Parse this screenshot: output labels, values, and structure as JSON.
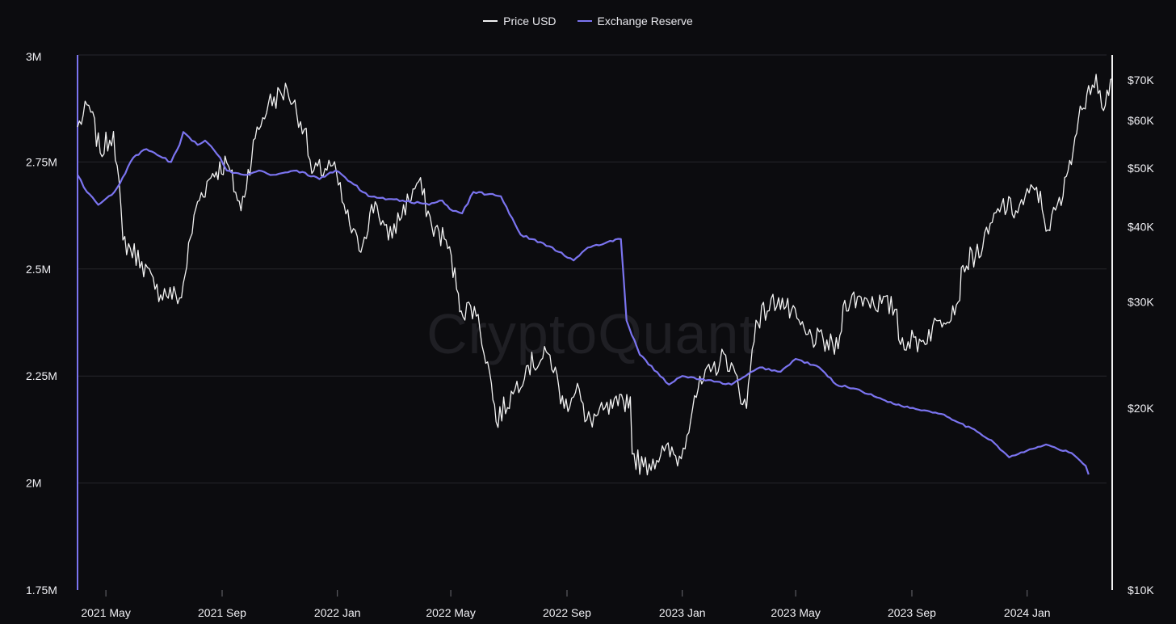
{
  "chart_data": {
    "type": "line",
    "title": "",
    "watermark": "CryptoQuant",
    "legend_position": "top-center",
    "grid": true,
    "x_axis": {
      "type": "date",
      "tick_labels": [
        "2021 May",
        "2021 Sep",
        "2022 Jan",
        "2022 May",
        "2022 Sep",
        "2023 Jan",
        "2023 May",
        "2023 Sep",
        "2024 Jan"
      ],
      "tick_dates": [
        "2021-05-01",
        "2021-09-01",
        "2022-01-01",
        "2022-05-01",
        "2022-09-01",
        "2023-01-01",
        "2023-05-01",
        "2023-09-01",
        "2024-01-01"
      ],
      "range": [
        "2021-04-01",
        "2024-03-31"
      ]
    },
    "y_left": {
      "label": "",
      "scale": "linear",
      "range": [
        1750000,
        3000000
      ],
      "ticks": [
        1750000,
        2000000,
        2250000,
        2500000,
        2750000,
        3000000
      ],
      "tick_labels": [
        "1.75M",
        "2M",
        "2.25M",
        "2.5M",
        "2.75M",
        "3M"
      ],
      "series": "Exchange Reserve"
    },
    "y_right": {
      "label": "",
      "scale": "log",
      "range": [
        10000,
        77000
      ],
      "ticks": [
        10000,
        20000,
        30000,
        40000,
        50000,
        60000,
        70000
      ],
      "tick_labels": [
        "$10K",
        "$20K",
        "$30K",
        "$40K",
        "$50K",
        "$60K",
        "$70K"
      ],
      "series": "Price USD"
    },
    "series": [
      {
        "name": "Price USD",
        "axis": "right",
        "color": "#f2f2f2",
        "x": [
          "2021-04-01",
          "2021-04-13",
          "2021-04-25",
          "2021-05-09",
          "2021-05-19",
          "2021-06-08",
          "2021-06-22",
          "2021-07-20",
          "2021-08-06",
          "2021-08-22",
          "2021-09-06",
          "2021-09-21",
          "2021-10-06",
          "2021-10-20",
          "2021-11-09",
          "2021-11-27",
          "2021-12-05",
          "2021-12-27",
          "2022-01-10",
          "2022-01-24",
          "2022-02-10",
          "2022-02-24",
          "2022-03-28",
          "2022-04-11",
          "2022-04-26",
          "2022-05-09",
          "2022-05-12",
          "2022-05-26",
          "2022-06-13",
          "2022-06-18",
          "2022-07-08",
          "2022-07-20",
          "2022-08-14",
          "2022-08-29",
          "2022-09-12",
          "2022-09-20",
          "2022-10-25",
          "2022-11-07",
          "2022-11-09",
          "2022-11-21",
          "2022-12-13",
          "2022-12-31",
          "2023-01-14",
          "2023-01-31",
          "2023-02-16",
          "2023-03-10",
          "2023-03-20",
          "2023-04-13",
          "2023-05-12",
          "2023-06-15",
          "2023-06-22",
          "2023-07-13",
          "2023-08-16",
          "2023-08-18",
          "2023-09-11",
          "2023-10-01",
          "2023-10-20",
          "2023-10-25",
          "2023-11-15",
          "2023-12-05",
          "2023-12-20",
          "2024-01-11",
          "2024-01-23",
          "2024-02-08",
          "2024-02-15",
          "2024-02-28",
          "2024-03-06",
          "2024-03-14",
          "2024-03-20",
          "2024-03-31"
        ],
        "values": [
          58500,
          63500,
          53000,
          57500,
          38000,
          35000,
          31500,
          30500,
          44000,
          49000,
          51000,
          42500,
          56000,
          64000,
          67500,
          58000,
          49000,
          50500,
          42000,
          36500,
          44000,
          38000,
          47500,
          40000,
          38000,
          31000,
          29000,
          29500,
          22000,
          19000,
          21500,
          23500,
          24500,
          20000,
          22000,
          19000,
          20200,
          20900,
          16800,
          16000,
          17000,
          16500,
          21000,
          23000,
          24500,
          20000,
          28000,
          30500,
          26500,
          25100,
          30200,
          30500,
          29200,
          26000,
          25800,
          28000,
          30000,
          34500,
          37000,
          43500,
          42500,
          46500,
          39500,
          45000,
          51500,
          62500,
          68500,
          71500,
          63000,
          70500
        ]
      },
      {
        "name": "Exchange Reserve",
        "axis": "left",
        "color": "#7b74f0",
        "x": [
          "2021-04-01",
          "2021-04-11",
          "2021-04-23",
          "2021-05-10",
          "2021-05-13",
          "2021-05-30",
          "2021-06-13",
          "2021-06-30",
          "2021-07-09",
          "2021-07-18",
          "2021-07-22",
          "2021-08-06",
          "2021-08-14",
          "2021-08-30",
          "2021-09-06",
          "2021-09-24",
          "2021-10-10",
          "2021-10-25",
          "2021-11-19",
          "2021-12-13",
          "2021-12-30",
          "2022-01-06",
          "2022-02-03",
          "2022-03-11",
          "2022-04-08",
          "2022-04-22",
          "2022-04-30",
          "2022-05-13",
          "2022-05-25",
          "2022-06-23",
          "2022-07-14",
          "2022-08-07",
          "2022-08-23",
          "2022-09-08",
          "2022-09-23",
          "2022-10-11",
          "2022-10-28",
          "2022-11-03",
          "2022-11-17",
          "2022-12-18",
          "2023-01-01",
          "2023-02-22",
          "2023-03-09",
          "2023-03-24",
          "2023-04-15",
          "2023-05-01",
          "2023-05-26",
          "2023-06-13",
          "2023-07-04",
          "2023-07-26",
          "2023-08-21",
          "2023-09-14",
          "2023-10-05",
          "2023-10-22",
          "2023-11-09",
          "2023-11-24",
          "2023-12-13",
          "2024-01-07",
          "2024-01-21",
          "2024-02-02",
          "2024-02-17",
          "2024-03-03",
          "2024-03-06"
        ],
        "values": [
          2720000,
          2680000,
          2650000,
          2680000,
          2690000,
          2760000,
          2780000,
          2760000,
          2750000,
          2790000,
          2820000,
          2790000,
          2800000,
          2760000,
          2730000,
          2720000,
          2730000,
          2720000,
          2730000,
          2710000,
          2730000,
          2720000,
          2670000,
          2660000,
          2650000,
          2660000,
          2640000,
          2630000,
          2680000,
          2670000,
          2580000,
          2560000,
          2540000,
          2520000,
          2550000,
          2560000,
          2570000,
          2380000,
          2300000,
          2230000,
          2250000,
          2230000,
          2250000,
          2270000,
          2260000,
          2290000,
          2270000,
          2230000,
          2220000,
          2200000,
          2180000,
          2170000,
          2160000,
          2140000,
          2120000,
          2100000,
          2060000,
          2080000,
          2090000,
          2080000,
          2070000,
          2040000,
          2020000
        ]
      }
    ]
  }
}
